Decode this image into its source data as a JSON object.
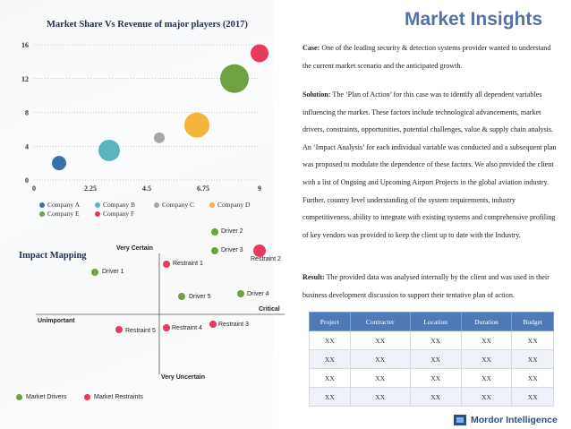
{
  "brand": {
    "title": "Market Insights",
    "logo_text": "Mordor Intelligence"
  },
  "bubble_chart": {
    "title": "Market Share Vs Revenue of major players (2017)"
  },
  "chart_data": [
    {
      "type": "scatter",
      "title": "Market Share Vs Revenue of major players (2017)",
      "xlabel": "",
      "ylabel": "",
      "xlim": [
        0,
        9
      ],
      "ylim": [
        0,
        16
      ],
      "x_ticks": [
        "0",
        "2.25",
        "4.5",
        "6.75",
        "9"
      ],
      "y_ticks": [
        "0",
        "4",
        "8",
        "12",
        "16"
      ],
      "series": [
        {
          "name": "Company A",
          "x": 1,
          "y": 2,
          "size": 8,
          "color": "#3a6fa8"
        },
        {
          "name": "Company B",
          "x": 3,
          "y": 3.5,
          "size": 12,
          "color": "#5ab4c2"
        },
        {
          "name": "Company C",
          "x": 5,
          "y": 5,
          "size": 6,
          "color": "#a6a6a6"
        },
        {
          "name": "Company D",
          "x": 6.5,
          "y": 6.5,
          "size": 14,
          "color": "#f5b33a"
        },
        {
          "name": "Company E",
          "x": 8,
          "y": 12,
          "size": 16,
          "color": "#6ea23f"
        },
        {
          "name": "Company F",
          "x": 9,
          "y": 15,
          "size": 10,
          "color": "#e8395e"
        }
      ]
    }
  ],
  "legend": [
    {
      "name": "Company A",
      "color": "#3a6fa8"
    },
    {
      "name": "Company B",
      "color": "#5ab4c2"
    },
    {
      "name": "Company C",
      "color": "#a6a6a6"
    },
    {
      "name": "Company D",
      "color": "#f5b33a"
    },
    {
      "name": "Company E",
      "color": "#6ea23f"
    },
    {
      "name": "Company F",
      "color": "#e8395e"
    }
  ],
  "impact": {
    "title": "Impact Mapping",
    "axis_top": "Very Certain",
    "axis_bottom": "Very Uncertain",
    "axis_left": "Unimportant",
    "axis_right": "Critical",
    "drivers_color": "#6ea23f",
    "restraints_color": "#e8395e",
    "legend_drivers": "Market Drivers",
    "legend_restraints": "Market Restraints",
    "points": {
      "driver1": "Driver 1",
      "driver2": "Driver 2",
      "driver3": "Driver 3",
      "driver4": "Driver 4",
      "driver5": "Driver 5",
      "restraint1": "Restraint 1",
      "restraint2": "Restraint 2",
      "restraint3": "Restraint 3",
      "restraint4": "Restraint 4",
      "restraint5": "Restraint 5"
    }
  },
  "case": {
    "label": "Case:",
    "text": " One of the leading security & detection systems provider wanted to understand the current market scenario and the anticipated growth."
  },
  "solution": {
    "label": "Solution:",
    "text": " The ‘Plan of Action’ for this case was to identify all dependent variables influencing the market. These factors include technological advancements, market drivers, constraints, opportunities, potential challenges, value & supply chain analysis. An ‘Impact Analysis’ for each individual variable was conducted and a subsequent plan was proposed to modulate the dependence of these factors. We also provided the client with a list of Ongoing and Upcoming Airport Projects in the global aviation industry. Further, country level understanding of the system requirements, industry competitiveness, ability to integrate with existing systems and comprehensive profiling of key vendors was provided to keep the client up to date with the Industry."
  },
  "result": {
    "label": "Result:",
    "text": " The provided data was analysed internally by the client and was used in their business development discussion to support their tentative plan of action."
  },
  "table": {
    "headers": [
      "Project",
      "Contracter",
      "Location",
      "Duration",
      "Budget"
    ],
    "rows": [
      [
        "XX",
        "XX",
        "XX",
        "XX",
        "XX"
      ],
      [
        "XX",
        "XX",
        "XX",
        "XX",
        "XX"
      ],
      [
        "XX",
        "XX",
        "XX",
        "XX",
        "XX"
      ],
      [
        "XX",
        "XX",
        "XX",
        "XX",
        "XX"
      ]
    ]
  }
}
